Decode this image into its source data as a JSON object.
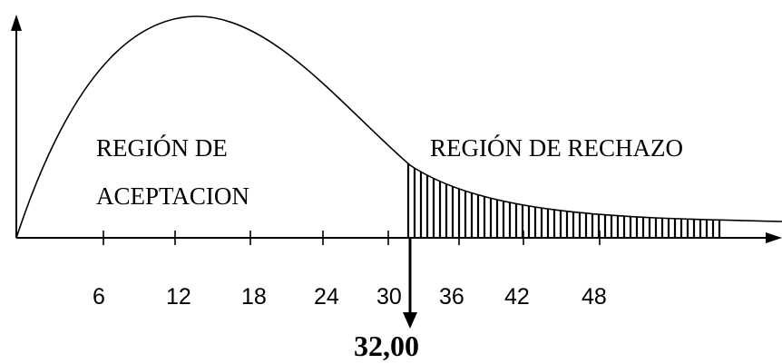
{
  "diagram": {
    "acceptance_label_line1": "REGIÓN DE",
    "acceptance_label_line2": "ACEPTACION",
    "rejection_label": "REGIÓN DE RECHAZO",
    "critical_value_label": "32,00",
    "ticks": [
      "6",
      "12",
      "18",
      "24",
      "30",
      "36",
      "42",
      "48"
    ],
    "critical_value": 32
  }
}
